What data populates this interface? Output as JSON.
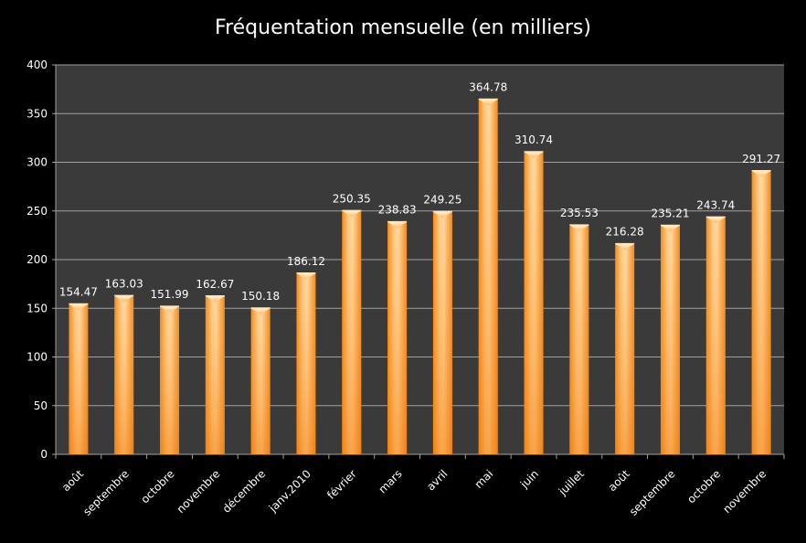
{
  "chart_data": {
    "type": "bar",
    "title": "Fréquentation mensuelle (en milliers)",
    "categories": [
      "août",
      "septembre",
      "octobre",
      "novembre",
      "décembre",
      "janv.2010",
      "février",
      "mars",
      "avril",
      "mai",
      "juin",
      "juillet",
      "août",
      "septembre",
      "octobre",
      "novembre"
    ],
    "values": [
      154.47,
      163.03,
      151.99,
      162.67,
      150.18,
      186.12,
      250.35,
      238.83,
      249.25,
      364.78,
      310.74,
      235.53,
      216.28,
      235.21,
      243.74,
      291.27
    ],
    "value_labels": [
      "154.47",
      "163.03",
      "151.99",
      "162.67",
      "150.18",
      "186.12",
      "250.35",
      "238.83",
      "249.25",
      "364.78",
      "310.74",
      "235.53",
      "216.28",
      "235.21",
      "243.74",
      "291.27"
    ],
    "y_ticks": [
      "0",
      "50",
      "100",
      "150",
      "200",
      "250",
      "300",
      "350",
      "400"
    ],
    "ylim": [
      0,
      400
    ],
    "xlabel": "",
    "ylabel": "",
    "grid": true,
    "legend": "none",
    "colors": {
      "background": "#000000",
      "plot_area": "#3a3a3a",
      "grid": "#9a9a9a",
      "bar_light": "#ffd49a",
      "bar_mid": "#ffa845",
      "bar_dark": "#f07a0a",
      "text": "#ffffff"
    }
  }
}
